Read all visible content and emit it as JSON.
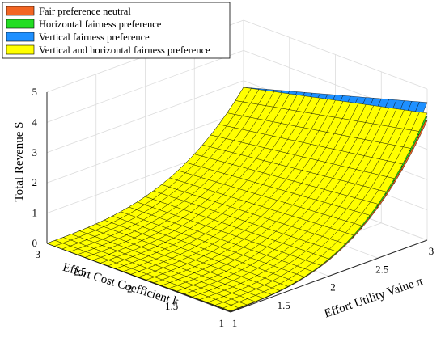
{
  "chart_data": {
    "type": "surface3d",
    "title": "",
    "xlabel": "Effort Utility Value π",
    "ylabel": "Effort Cost Coefficient k",
    "zlabel": "Total Revenue S",
    "x_range": [
      1,
      3
    ],
    "y_range": [
      1,
      3
    ],
    "z_range": [
      0,
      5
    ],
    "x_ticks": [
      "1",
      "1.5",
      "2",
      "2.5",
      "3"
    ],
    "y_ticks": [
      "1",
      "1.5",
      "2",
      "2.5",
      "3"
    ],
    "z_ticks": [
      "0",
      "1",
      "2",
      "3",
      "4",
      "5"
    ],
    "grid": true,
    "legend_position": "top-left",
    "grid_resolution": 24,
    "series": [
      {
        "name": "Fair preference neutral",
        "color": "#f26522",
        "corner_values": {
          "x1_y1": 0.02,
          "x3_y1": 3.95,
          "x1_y3": 0.0,
          "x3_y3": 2.78
        }
      },
      {
        "name": "Horizontal fairness preference",
        "color": "#22dd22",
        "corner_values": {
          "x1_y1": 0.03,
          "x3_y1": 4.08,
          "x1_y3": 0.0,
          "x3_y3": 2.78
        }
      },
      {
        "name": "Vertical fairness preference",
        "color": "#1e90ff",
        "corner_values": {
          "x1_y1": 0.05,
          "x3_y1": 4.55,
          "x1_y3": 0.0,
          "x3_y3": 2.78
        }
      },
      {
        "name": "Vertical and horizontal fairness preference",
        "color": "#ffff00",
        "corner_values": {
          "x1_y1": 0.04,
          "x3_y1": 4.2,
          "x1_y3": 0.0,
          "x3_y3": 2.78
        }
      }
    ]
  }
}
